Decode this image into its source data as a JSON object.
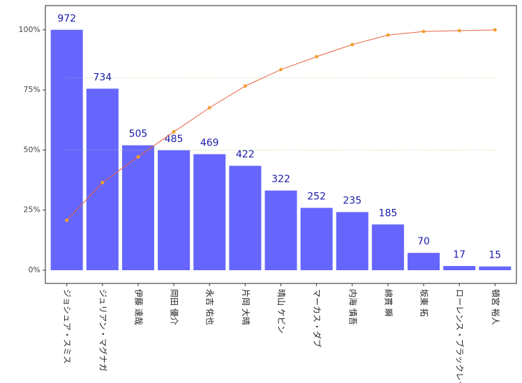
{
  "chart_data": {
    "type": "pareto",
    "categories": [
      "ジョシュア・スミス",
      "ジュリアン・マグナガ",
      "伊藤 達哉",
      "岡田 優介",
      "永吉 佑也",
      "片岡 大晴",
      "晴山 ケビン",
      "マーカス・ダブ",
      "内海 慎吾",
      "綿貫 瞬",
      "坂東 拓",
      "ローレンス・ブラックレッジ",
      "頓宮 裕人"
    ],
    "series": [
      {
        "color": "#6666ff",
        "values": [
          972,
          734,
          505,
          485,
          469,
          422,
          322,
          252,
          235,
          185,
          70,
          17,
          15
        ]
      },
      {
        "color": "#e8603c",
        "point_color": "#f0a030",
        "axis": "y2",
        "values": [
          20.76,
          36.43,
          47.21,
          57.57,
          67.58,
          76.6,
          83.47,
          88.85,
          93.87,
          97.82,
          99.32,
          99.68,
          100
        ]
      }
    ],
    "ylim": [
      -53.5,
      1070
    ],
    "yticks": [
      {
        "value": 0,
        "label": "0%"
      },
      {
        "value": 243,
        "label": "25%"
      },
      {
        "value": 486,
        "label": "50%"
      },
      {
        "value": 729,
        "label": "75%"
      },
      {
        "value": 972,
        "label": "100%"
      }
    ],
    "y2lim": [
      -5.5,
      110.1
    ],
    "reference_lines": {
      "axis": "y2",
      "values": [
        80,
        50
      ],
      "color": "#99cc66"
    },
    "value_label_color": "#1a1aaa"
  }
}
